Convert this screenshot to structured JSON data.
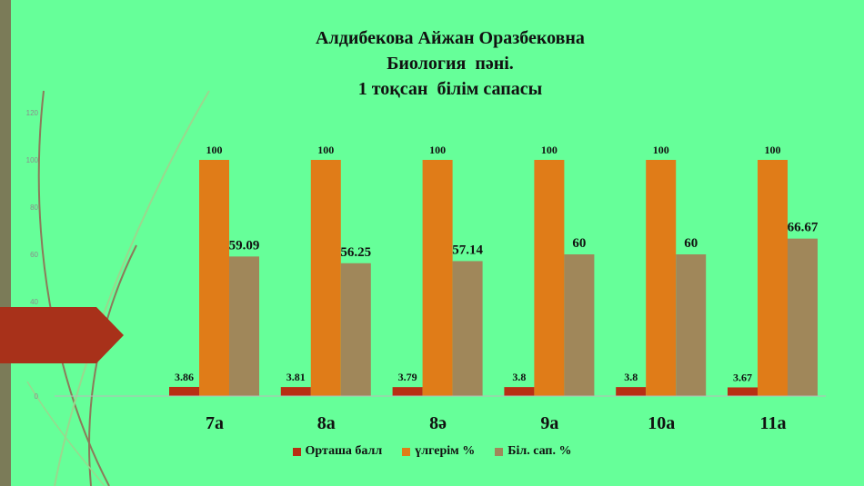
{
  "title_lines": [
    "Алдибекова Айжан Оразбековна",
    "Биология  пәні.",
    "1 тоқсан  білім сапасы"
  ],
  "colors": {
    "background": "#66FF99",
    "series": [
      "#B82E14",
      "#E07C18",
      "#A0875A"
    ],
    "arrow": "#A8311A",
    "strip": "#7B7B58"
  },
  "chart_data": {
    "type": "bar",
    "categories": [
      "7а",
      "8а",
      "8ә",
      "9а",
      "10а",
      "11а"
    ],
    "series": [
      {
        "name": "Орташа балл",
        "values": [
          3.86,
          3.81,
          3.79,
          3.8,
          3.8,
          3.67
        ],
        "labels": [
          "3.86",
          "3.81",
          "3.79",
          "3.8",
          "3.8",
          "3.67"
        ]
      },
      {
        "name": "үлгерім %",
        "values": [
          100,
          100,
          100,
          100,
          100,
          100
        ],
        "labels": [
          "100",
          "100",
          "100",
          "100",
          "100",
          "100"
        ]
      },
      {
        "name": "Біл. сап. %",
        "values": [
          59.09,
          56.25,
          57.14,
          60,
          60,
          66.67
        ],
        "labels": [
          "59.09",
          "56.25",
          "57.14",
          "60",
          "60",
          "66.67"
        ]
      }
    ],
    "ylim": [
      0,
      120
    ],
    "yticks": [
      "0",
      "20",
      "40",
      "60",
      "80",
      "100",
      "120"
    ],
    "legend_position": "bottom"
  }
}
